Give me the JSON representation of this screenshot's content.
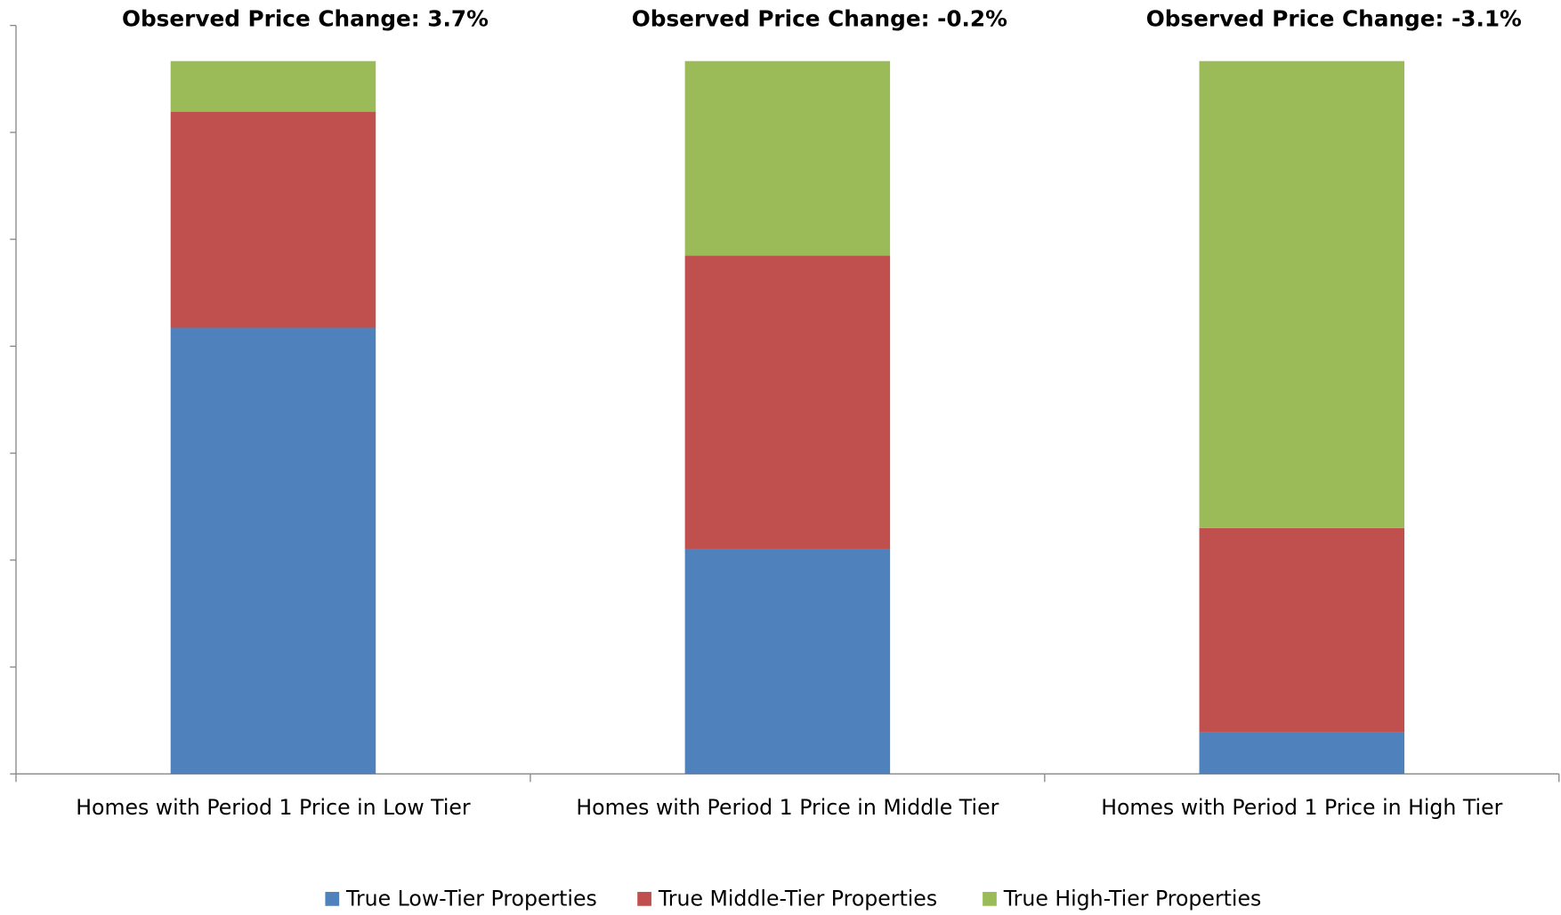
{
  "chart_data": {
    "type": "stacked_bar",
    "annotations": [
      "Observed Price Change:  3.7%",
      "Observed Price Change:  -0.2%",
      "Observed Price Change:  -3.1%"
    ],
    "categories": [
      "Homes with Period 1 Price in Low Tier",
      "Homes with Period 1 Price in Middle Tier",
      "Homes with Period 1 Price in High Tier"
    ],
    "series": [
      {
        "name": "True Low-Tier Properties",
        "color": "#4f81bd",
        "values": [
          62.6,
          31.6,
          5.9
        ]
      },
      {
        "name": "True Middle-Tier Properties",
        "color": "#c0504d",
        "values": [
          30.3,
          41.1,
          28.6
        ]
      },
      {
        "name": "True High-Tier Properties",
        "color": "#9bbb59",
        "values": [
          7.1,
          27.3,
          65.5
        ]
      }
    ],
    "ylim": [
      0,
      105
    ],
    "yticks": [
      0,
      15,
      30,
      45,
      60,
      75,
      90,
      105
    ],
    "legend": "bottom"
  }
}
